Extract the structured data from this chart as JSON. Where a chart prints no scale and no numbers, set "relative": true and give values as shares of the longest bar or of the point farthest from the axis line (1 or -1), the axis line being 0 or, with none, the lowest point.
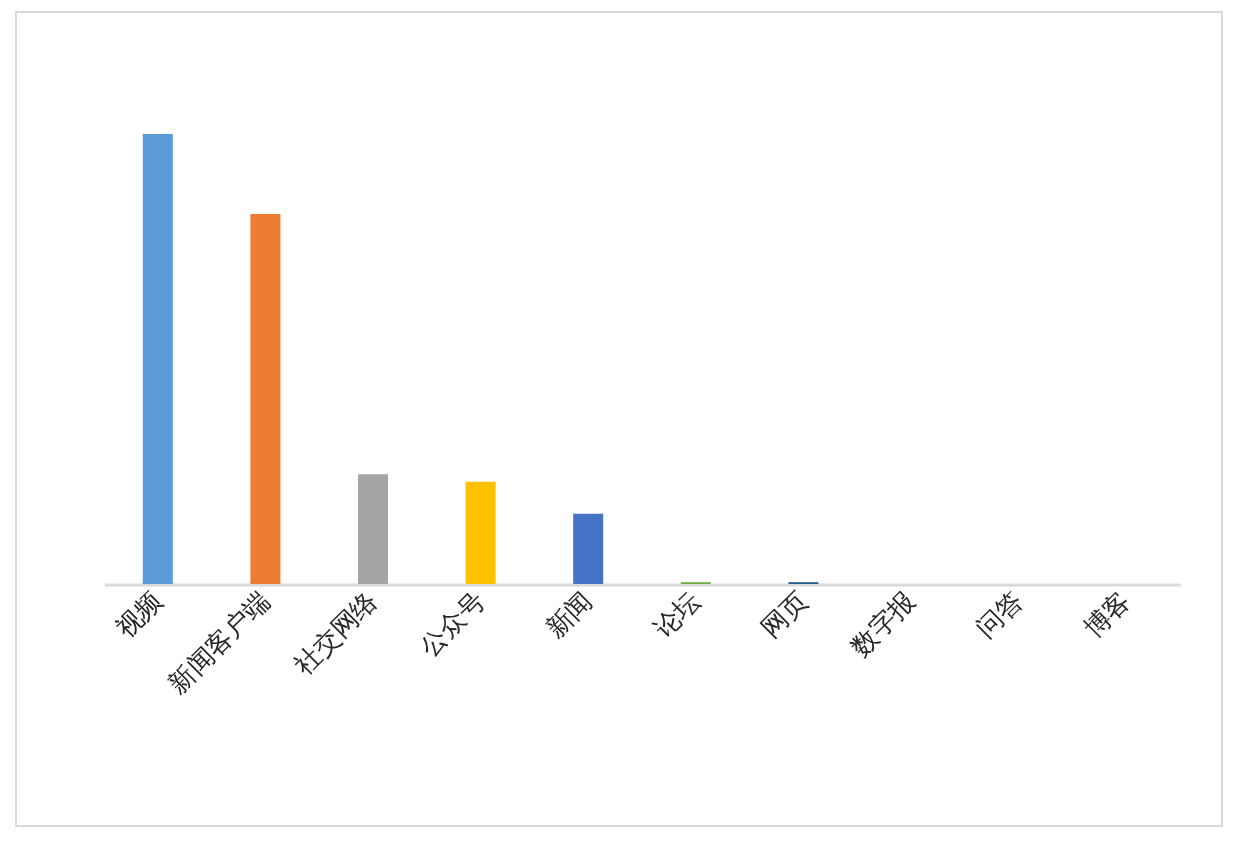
{
  "chart_data": {
    "type": "bar",
    "relative": true,
    "categories": [
      "视频",
      "新闻客户端",
      "社交网络",
      "公众号",
      "新闻",
      "论坛",
      "网页",
      "数字报",
      "问答",
      "博客"
    ],
    "values": [
      1,
      0.822,
      0.244,
      0.227,
      0.156,
      0.004,
      0.004,
      null,
      null,
      null
    ],
    "colors": [
      "#5b9bd5",
      "#ed7d31",
      "#a5a5a5",
      "#ffc000",
      "#4472c4",
      "#70ad47",
      "#255e91",
      null,
      null,
      null
    ]
  }
}
